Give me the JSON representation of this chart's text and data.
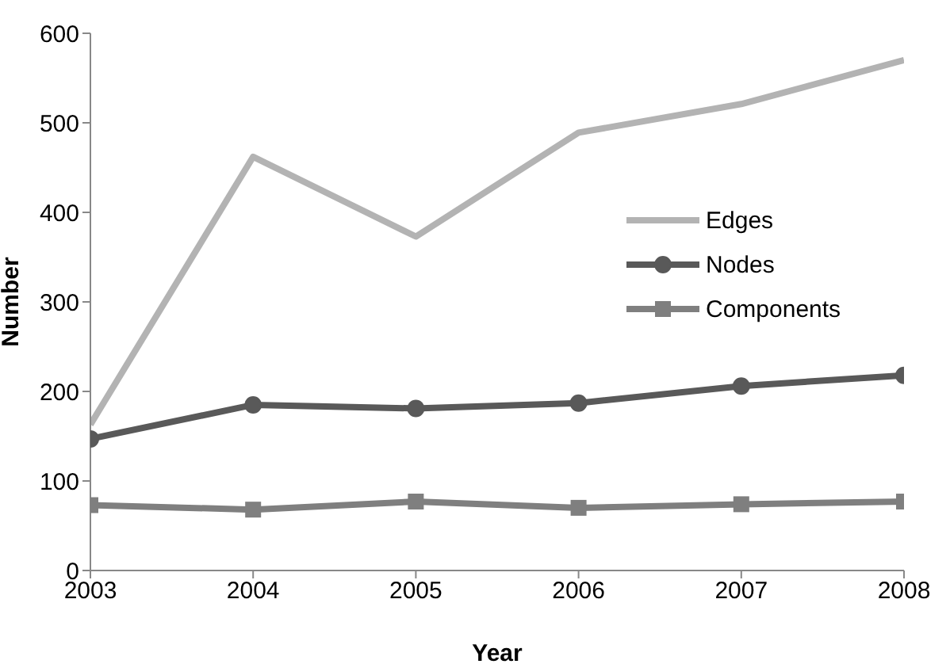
{
  "chart_data": {
    "type": "line",
    "xlabel": "Year",
    "ylabel": "Number",
    "x": [
      2003,
      2004,
      2005,
      2006,
      2007,
      2008
    ],
    "xlim": [
      2003,
      2008
    ],
    "xticks": [
      2003,
      2004,
      2005,
      2006,
      2007,
      2008
    ],
    "ylim": [
      0,
      600
    ],
    "yticks": [
      0,
      100,
      200,
      300,
      400,
      500,
      600
    ],
    "grid": false,
    "legend": "right",
    "series": [
      {
        "name": "Edges",
        "color": "#b3b3b3",
        "marker": "none",
        "values": [
          163,
          462,
          373,
          489,
          521,
          570
        ]
      },
      {
        "name": "Nodes",
        "color": "#595959",
        "marker": "circle",
        "values": [
          147,
          185,
          181,
          187,
          206,
          218
        ]
      },
      {
        "name": "Components",
        "color": "#7f7f7f",
        "marker": "square",
        "values": [
          73,
          68,
          77,
          70,
          74,
          77
        ]
      }
    ]
  }
}
